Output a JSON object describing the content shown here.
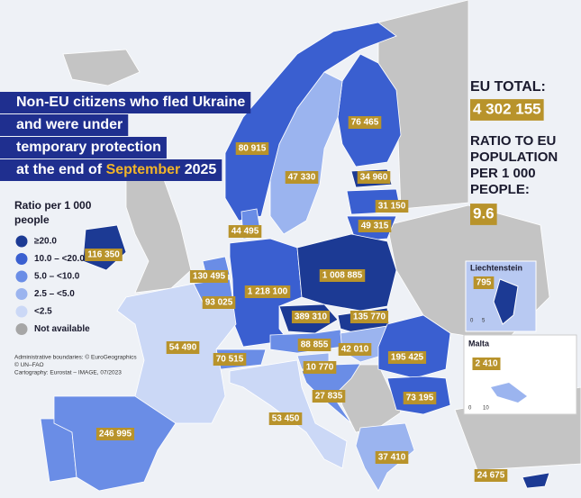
{
  "title": {
    "lines": [
      "Non-EU citizens who fled Ukraine",
      "and were under",
      "temporary protection"
    ],
    "last_prefix": "at the end of",
    "month": "September",
    "year": "2025"
  },
  "summary": {
    "total_label": "EU TOTAL:",
    "total": "4 302 155",
    "ratio_label": [
      "RATIO TO EU",
      "POPULATION",
      "PER 1 000",
      "PEOPLE:"
    ],
    "ratio": "9.6"
  },
  "legend": {
    "title": [
      "Ratio per 1 000",
      "people"
    ],
    "items": [
      {
        "label": "≥20.0",
        "color": "#1c3a94"
      },
      {
        "label": "10.0 – <20.0",
        "color": "#3a5fd0"
      },
      {
        "label": "5.0 – <10.0",
        "color": "#6a8de6"
      },
      {
        "label": "2.5 – <5.0",
        "color": "#9bb4ef"
      },
      {
        "label": "<2.5",
        "color": "#cbd8f6"
      },
      {
        "label": "Not available",
        "color": "#a6a6a6"
      }
    ]
  },
  "credits": [
    "Administrative boundaries: © EuroGeographics",
    "© UN–FAO",
    "Cartography: Eurostat – IMAGE, 07/2023"
  ],
  "regions": [
    {
      "value": "116 350",
      "color": "#1c3a94"
    },
    {
      "value": "76 465",
      "color": "#3a5fd0"
    },
    {
      "value": "47 330",
      "color": "#9bb4ef"
    },
    {
      "value": "80 915",
      "color": "#3a5fd0"
    },
    {
      "value": "34 960",
      "color": "#1c3a94"
    },
    {
      "value": "31 150",
      "color": "#3a5fd0"
    },
    {
      "value": "49 315",
      "color": "#3a5fd0"
    },
    {
      "value": "44 495",
      "color": "#6a8de6"
    },
    {
      "value": "130 495",
      "color": "#6a8de6"
    },
    {
      "value": "93 025",
      "color": "#6a8de6"
    },
    {
      "value": "1 218 100",
      "color": "#3a5fd0"
    },
    {
      "value": "1 008 885",
      "color": "#1c3a94"
    },
    {
      "value": "389 310",
      "color": "#1c3a94"
    },
    {
      "value": "135 770",
      "color": "#1c3a94"
    },
    {
      "value": "88 855",
      "color": "#6a8de6"
    },
    {
      "value": "42 010",
      "color": "#9bb4ef"
    },
    {
      "value": "10 770",
      "color": "#9bb4ef"
    },
    {
      "value": "27 835",
      "color": "#6a8de6"
    },
    {
      "value": "70 515",
      "color": "#6a8de6"
    },
    {
      "value": "54 490",
      "color": "#cbd8f6"
    },
    {
      "value": "195 425",
      "color": "#3a5fd0"
    },
    {
      "value": "73 195",
      "color": "#3a5fd0"
    },
    {
      "value": "53 450",
      "color": "#cbd8f6"
    },
    {
      "value": "246 995",
      "color": "#6a8de6"
    },
    {
      "value": "37 410",
      "color": "#9bb4ef"
    },
    {
      "value": "24 675",
      "color": "#1c3a94"
    }
  ],
  "insets": [
    {
      "name": "Liechtenstein",
      "value": "795",
      "scale": [
        "0",
        "5"
      ]
    },
    {
      "name": "Malta",
      "value": "2 410",
      "scale": [
        "0",
        "10"
      ]
    }
  ]
}
